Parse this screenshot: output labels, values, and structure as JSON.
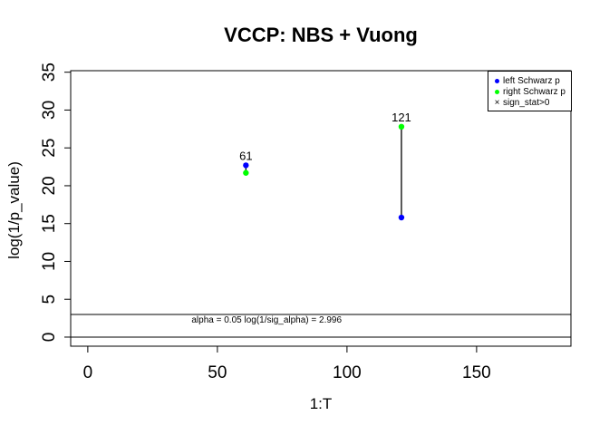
{
  "figure": {
    "background": "#ffffff",
    "frame_color": "#000000"
  },
  "chart_data": {
    "type": "scatter",
    "title": "VCCP: NBS + Vuong",
    "xlabel": "1:T",
    "ylabel": "log(1/p_value)",
    "x_ticks": [
      0,
      50,
      100,
      150
    ],
    "y_ticks": [
      0,
      5,
      10,
      15,
      20,
      25,
      30,
      35
    ],
    "xlim": [
      -6.6,
      186.4
    ],
    "ylim": [
      -1.2,
      35.2
    ],
    "grid": false,
    "legend_position": "top-right",
    "series": [
      {
        "name": "left Schwarz p",
        "marker": "circle",
        "color": "#0000FF",
        "points": [
          {
            "x": 61,
            "y": 22.7
          },
          {
            "x": 121,
            "y": 15.8
          }
        ]
      },
      {
        "name": "right Schwarz p",
        "marker": "circle",
        "color": "#00FF00",
        "points": [
          {
            "x": 61,
            "y": 21.7
          },
          {
            "x": 121,
            "y": 27.8
          }
        ]
      },
      {
        "name": "sign_stat>0",
        "marker": "x",
        "color": "#000000",
        "points": []
      }
    ],
    "segments": [
      {
        "x": 61,
        "y1": 21.7,
        "y2": 22.7
      },
      {
        "x": 121,
        "y1": 15.8,
        "y2": 27.8
      }
    ],
    "point_labels": [
      {
        "text": "61",
        "x": 61,
        "y": 22.7
      },
      {
        "text": "121",
        "x": 121,
        "y": 27.8
      }
    ],
    "hlines": [
      {
        "y": 0
      },
      {
        "y": 2.996
      }
    ],
    "annotations": [
      {
        "text": "alpha = 0.05 log(1/sig_alpha) = 2.996",
        "x": 69,
        "y": 2.996
      }
    ]
  }
}
